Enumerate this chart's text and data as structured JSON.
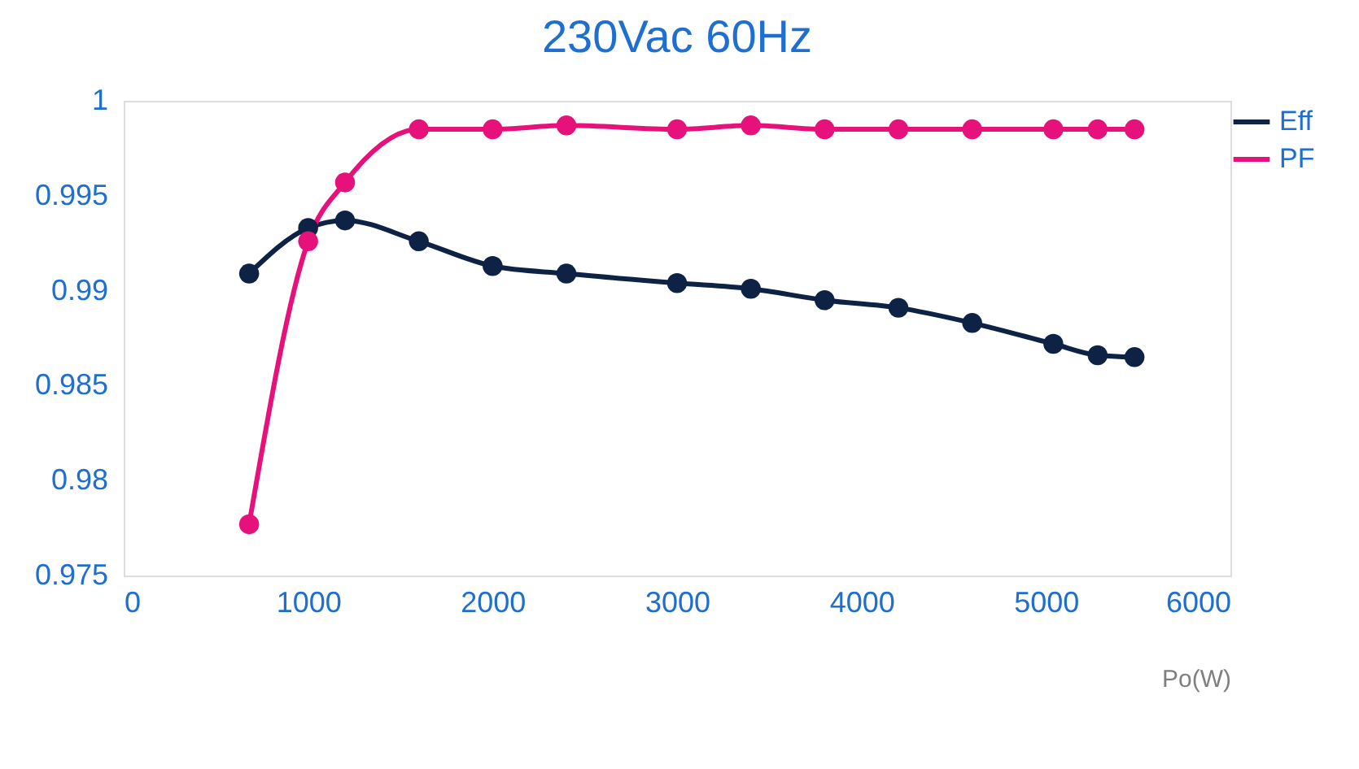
{
  "chart_data": {
    "type": "line",
    "title": "230Vac  60Hz",
    "xlabel": "Po(W)",
    "x": [
      680,
      1000,
      1200,
      1600,
      2000,
      2400,
      3000,
      3400,
      3800,
      4200,
      4600,
      5040,
      5280,
      5480
    ],
    "series": [
      {
        "name": "Eff",
        "color": "#0d2244",
        "values": [
          0.9909,
          0.9933,
          0.9937,
          0.9926,
          0.9913,
          0.9909,
          0.9904,
          0.9901,
          0.9895,
          0.9891,
          0.9883,
          0.9872,
          0.9866,
          0.9865
        ]
      },
      {
        "name": "PF",
        "color": "#e6117a",
        "values": [
          0.9777,
          0.9926,
          0.9957,
          0.9985,
          0.9985,
          0.9987,
          0.9985,
          0.9987,
          0.9985,
          0.9985,
          0.9985,
          0.9985,
          0.9985,
          0.9985
        ]
      }
    ],
    "xlim": [
      0,
      6000
    ],
    "xticks": [
      0,
      1000,
      2000,
      3000,
      4000,
      5000,
      6000
    ],
    "ylim": [
      0.975,
      1
    ],
    "yticks": [
      0.975,
      0.98,
      0.985,
      0.99,
      0.995,
      1
    ],
    "grid": false,
    "legend": "right",
    "marker": "circle",
    "line_style": "solid"
  }
}
